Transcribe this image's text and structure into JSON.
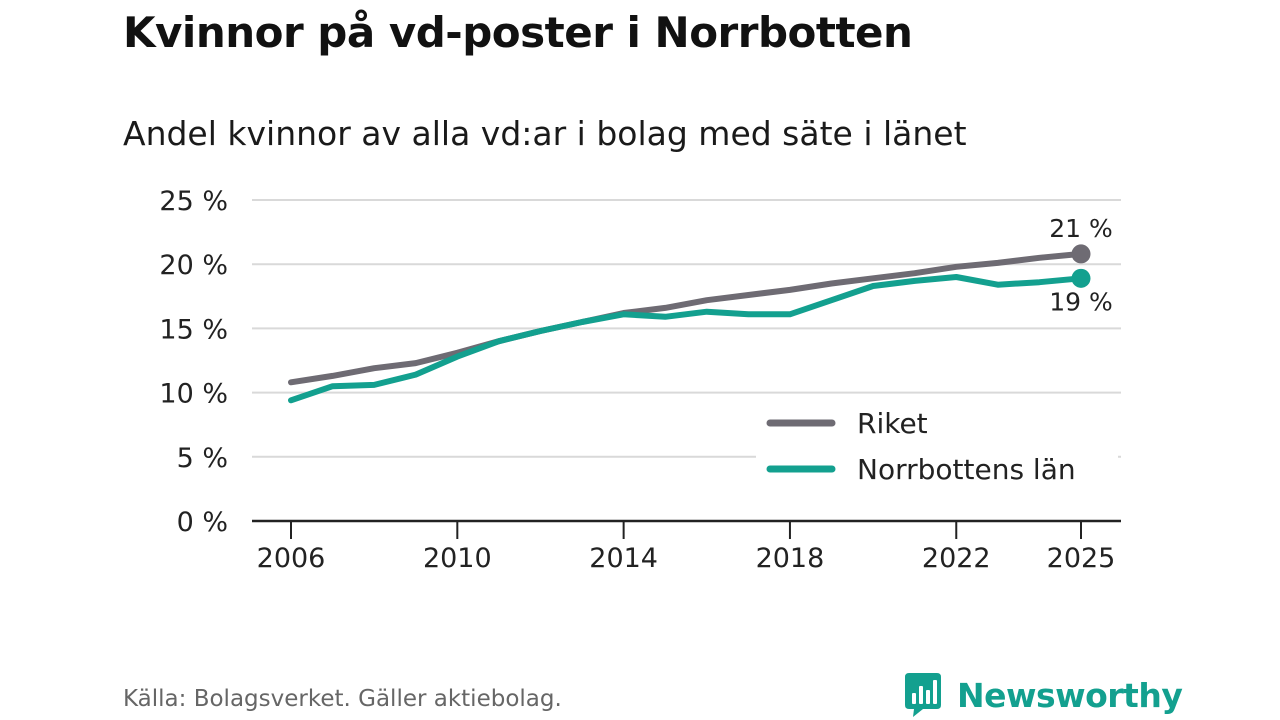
{
  "title": "Kvinnor på vd-poster i Norrbotten",
  "subtitle": "Andel kvinnor av alla vd:ar i bolag med säte i länet",
  "source": "Källa: Bolagsverket. Gäller aktiebolag.",
  "brand": {
    "name": "Newsworthy",
    "color": "#13a08f"
  },
  "chart_data": {
    "type": "line",
    "title": "Kvinnor på vd-poster i Norrbotten",
    "subtitle": "Andel kvinnor av alla vd:ar i bolag med säte i länet",
    "xlabel": "",
    "ylabel": "",
    "xlim": [
      2006,
      2025
    ],
    "ylim": [
      0,
      25
    ],
    "x_ticks": [
      2006,
      2010,
      2014,
      2018,
      2022,
      2025
    ],
    "y_ticks": [
      0,
      5,
      10,
      15,
      20,
      25
    ],
    "y_tick_labels": [
      "0 %",
      "5 %",
      "10 %",
      "15 %",
      "20 %",
      "25 %"
    ],
    "grid": true,
    "legend_position": "bottom-right",
    "x": [
      2006,
      2007,
      2008,
      2009,
      2010,
      2011,
      2012,
      2013,
      2014,
      2015,
      2016,
      2017,
      2018,
      2019,
      2020,
      2021,
      2022,
      2023,
      2024,
      2025
    ],
    "series": [
      {
        "name": "Riket",
        "color": "#6e6b73",
        "values": [
          10.8,
          11.3,
          11.9,
          12.3,
          13.1,
          14.0,
          14.8,
          15.5,
          16.2,
          16.6,
          17.2,
          17.6,
          18.0,
          18.5,
          18.9,
          19.3,
          19.8,
          20.1,
          20.5,
          20.8
        ],
        "end_label": "21 %"
      },
      {
        "name": "Norrbottens län",
        "color": "#13a08f",
        "values": [
          9.4,
          10.5,
          10.6,
          11.4,
          12.8,
          14.0,
          14.8,
          15.5,
          16.1,
          15.9,
          16.3,
          16.1,
          16.1,
          17.2,
          18.3,
          18.7,
          19.0,
          18.4,
          18.6,
          18.9
        ],
        "end_label": "19 %"
      }
    ]
  }
}
